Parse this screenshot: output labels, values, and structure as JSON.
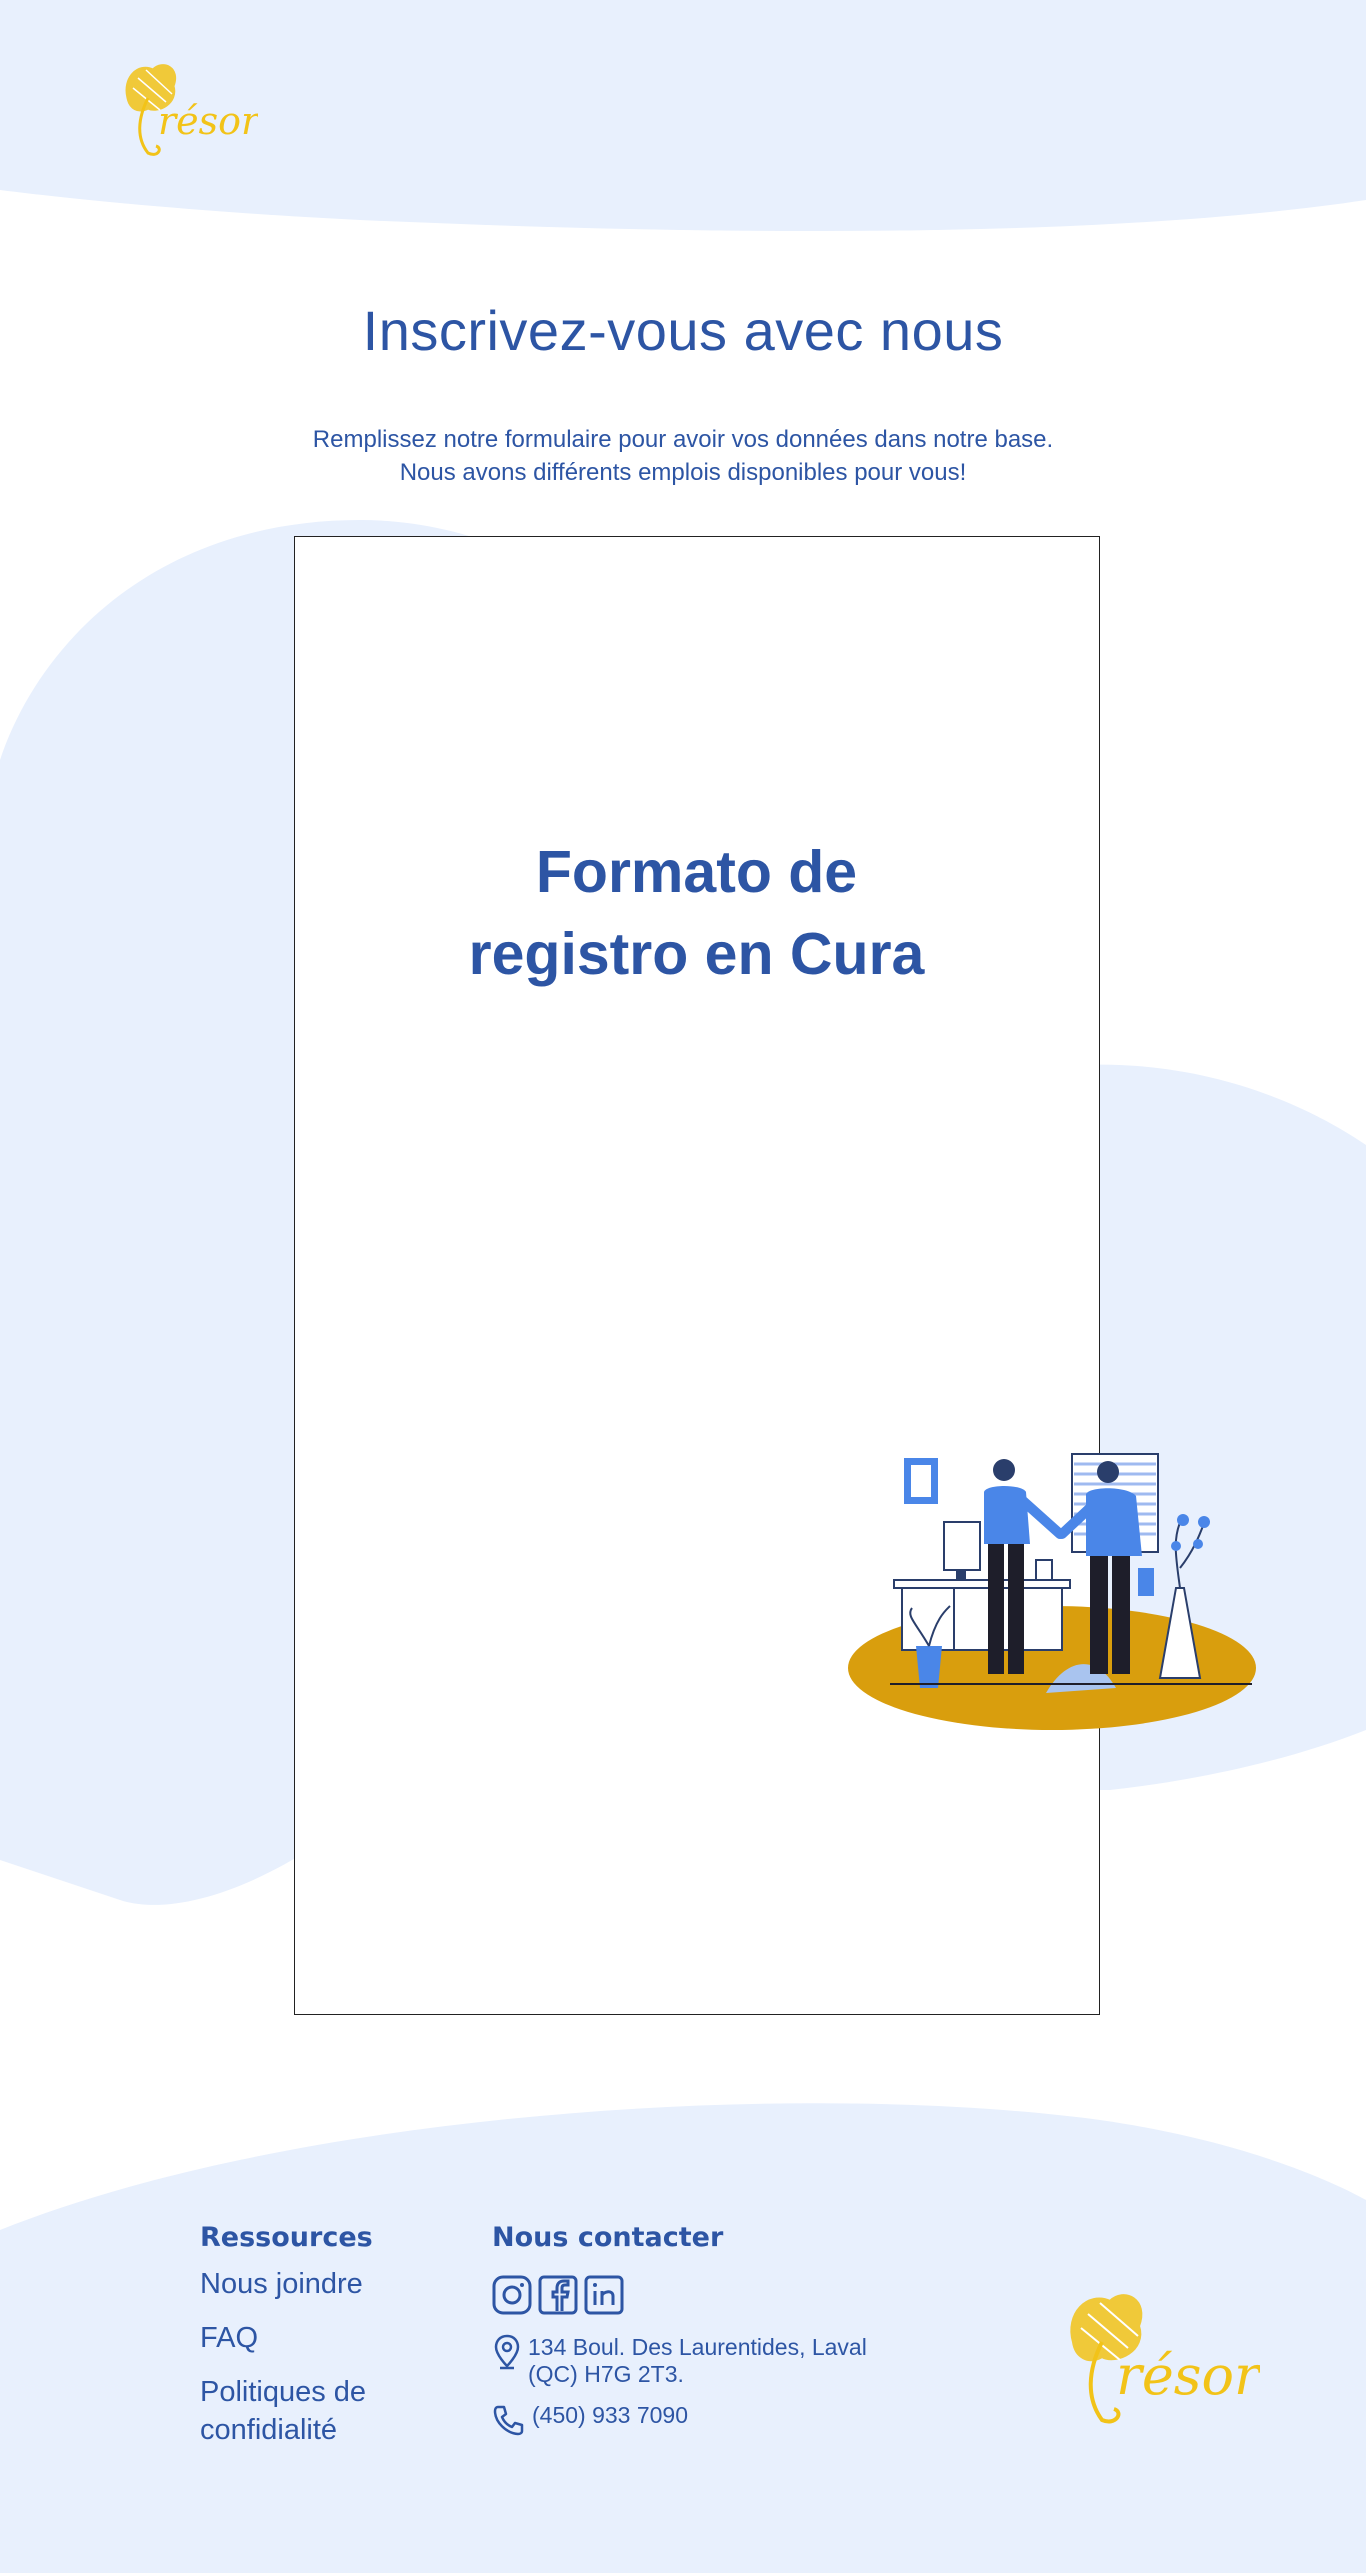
{
  "brand": {
    "name": "Trésor",
    "logo_color": "#f2c318"
  },
  "header": {
    "logo_alt": "Trésor"
  },
  "hero": {
    "title": "Inscrivez-vous avec nous",
    "subtitle_line1": "Remplissez notre formulaire pour avoir vos données dans notre base.",
    "subtitle_line2": "Nous avons différents emplois disponibles pour vous!"
  },
  "form_embed": {
    "title_line1": "Formato de",
    "title_line2": "registro en Cura"
  },
  "footer": {
    "resources_heading": "Ressources",
    "links": [
      "Nous joindre",
      "FAQ",
      "Politiques de",
      "confidialité"
    ],
    "contact_heading": "Nous contacter",
    "social_icons": [
      "instagram-icon",
      "facebook-icon",
      "linkedin-icon"
    ],
    "address_line1": "134 Boul. Des Laurentides, Laval",
    "address_line2": "(QC) H7G 2T3.",
    "phone": "(450) 933 7090"
  },
  "colors": {
    "primary": "#2d55a4",
    "light_bg": "#e8f0fd",
    "accent_gold": "#d99e0d",
    "logo_yellow": "#f2c318",
    "illustration_blue": "#4a86e8"
  }
}
